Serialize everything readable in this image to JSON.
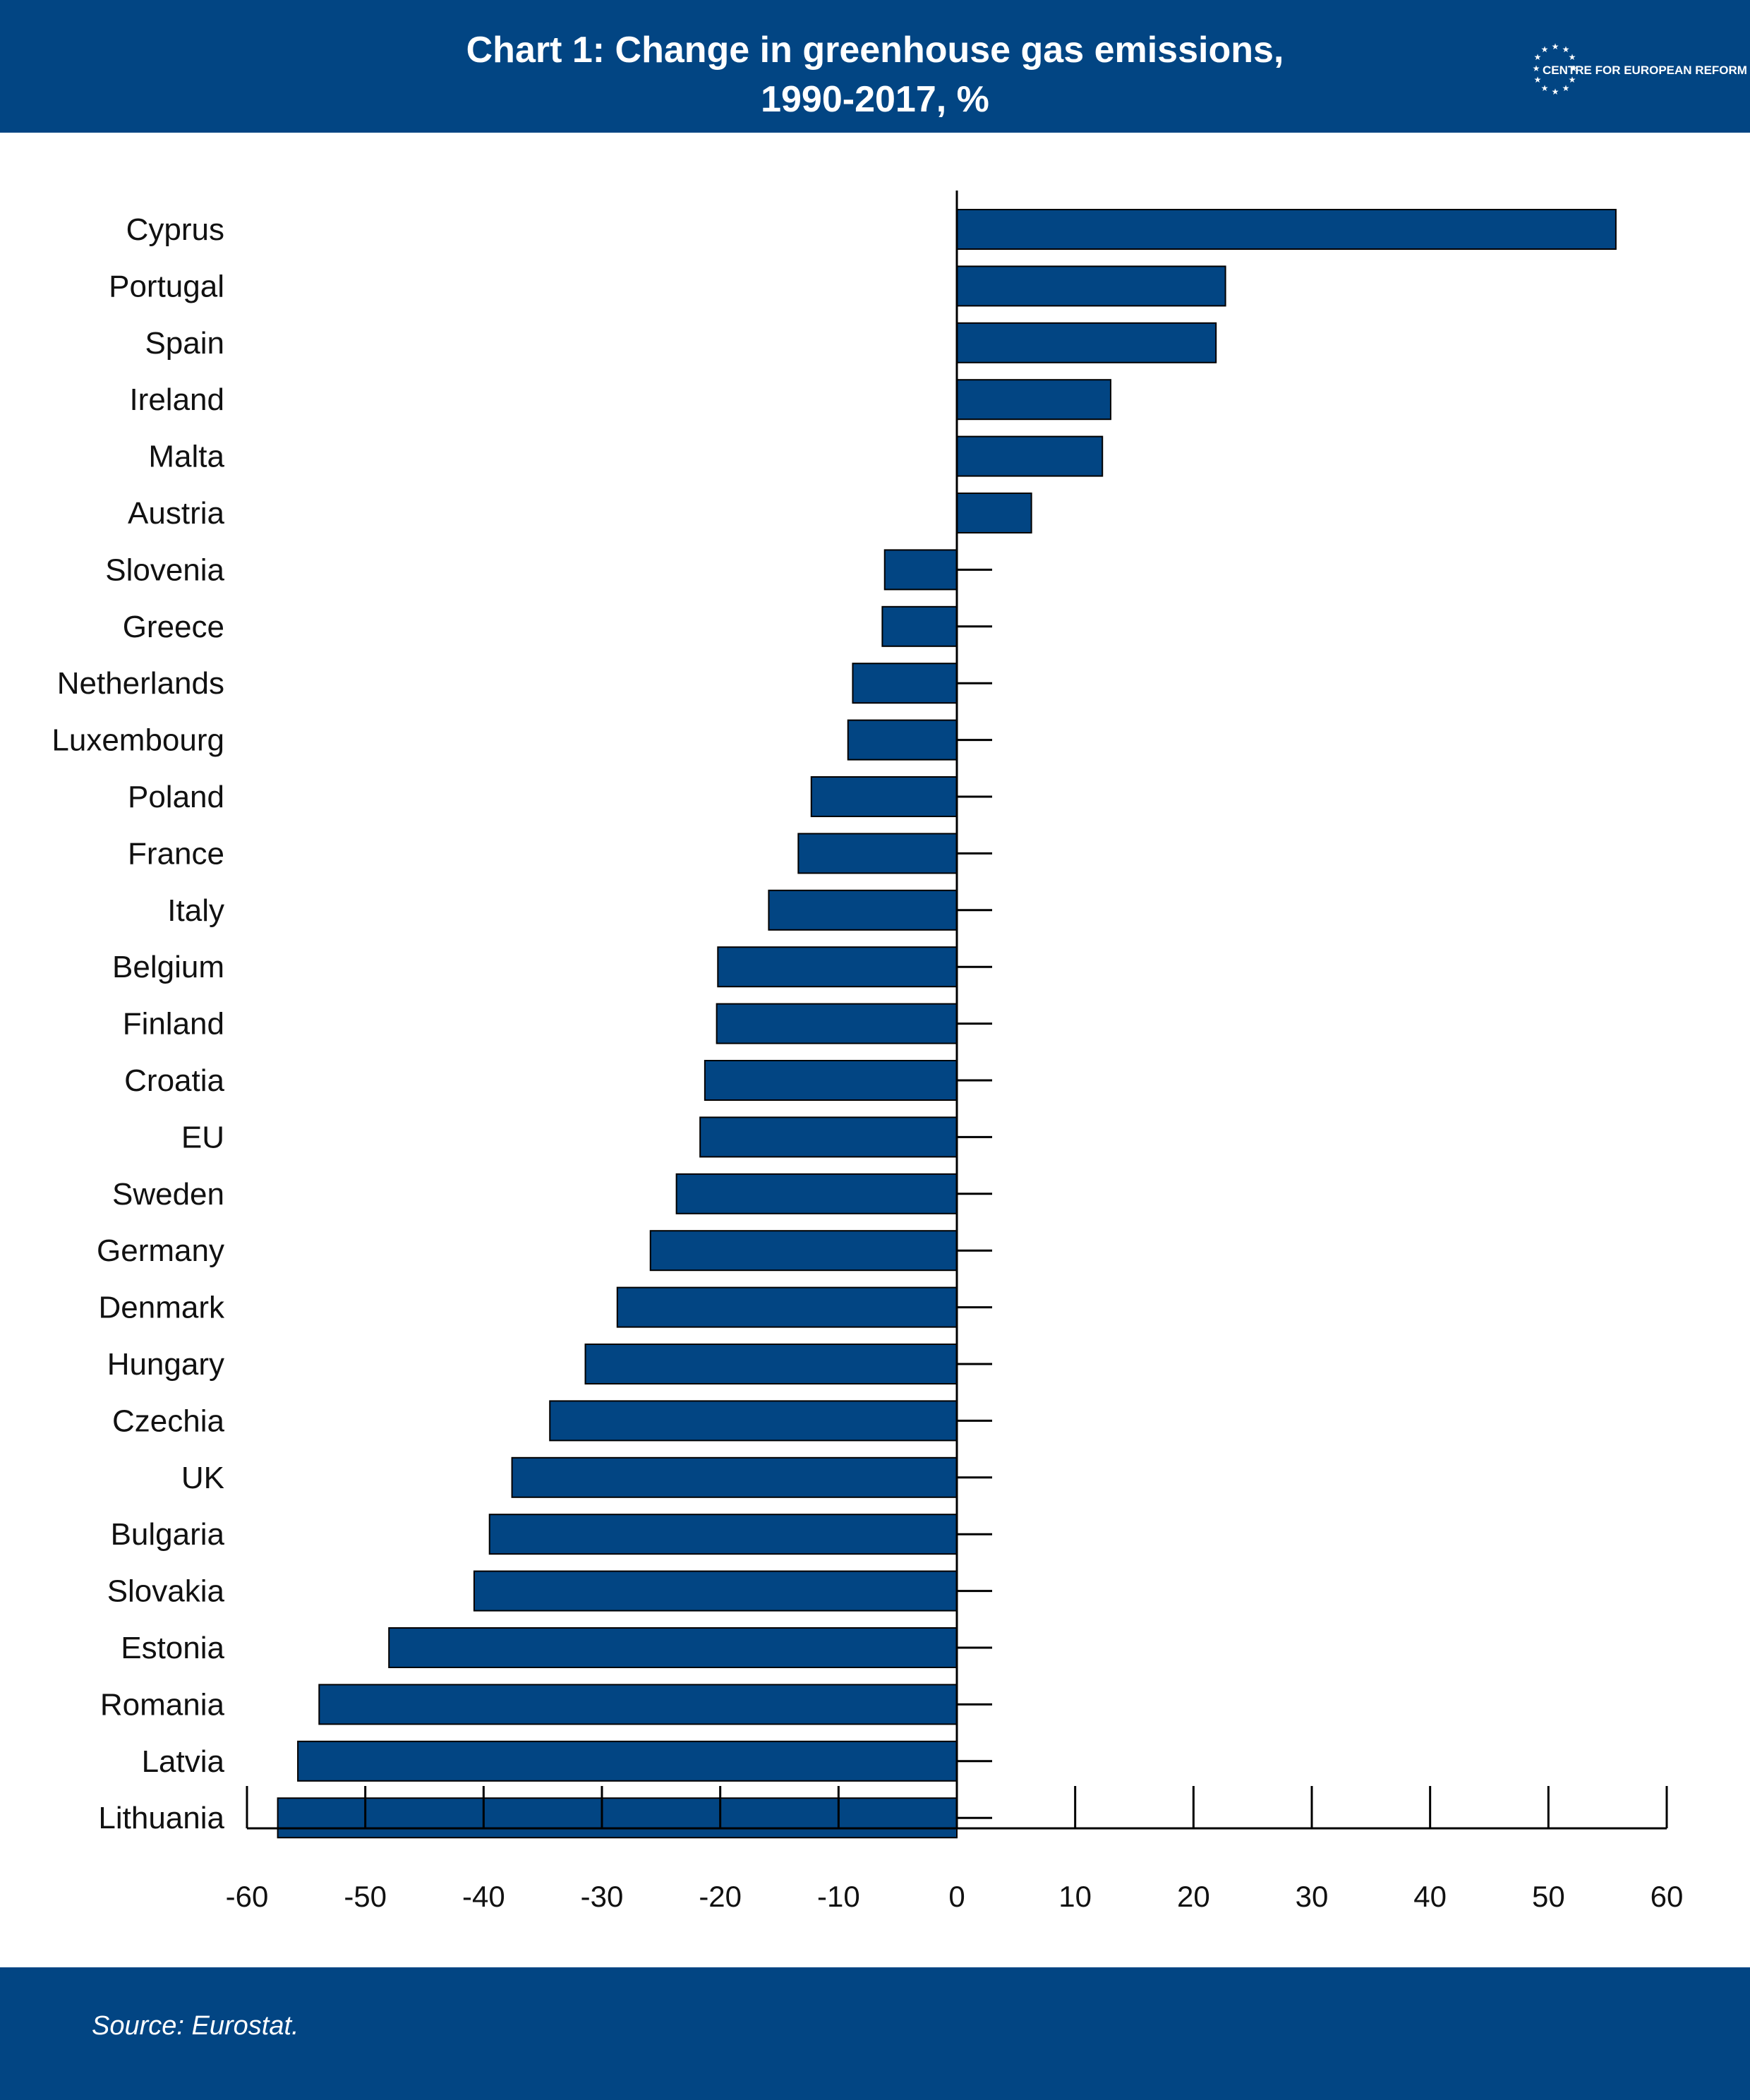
{
  "header": {
    "title_line1": "Chart 1: Change in greenhouse gas emissions,",
    "title_line2": "1990-2017, %",
    "logo_text": "CENTRE FOR EUROPEAN REFORM"
  },
  "footer": {
    "source": "Source: Eurostat."
  },
  "colors": {
    "brand": "#024583",
    "bar": "#024583",
    "axis": "#000000"
  },
  "chart_data": {
    "type": "bar",
    "orientation": "horizontal",
    "title": "Chart 1: Change in greenhouse gas emissions, 1990-2017, %",
    "categories": [
      "Cyprus",
      "Portugal",
      "Spain",
      "Ireland",
      "Malta",
      "Austria",
      "Slovenia",
      "Greece",
      "Netherlands",
      "Luxembourg",
      "Poland",
      "France",
      "Italy",
      "Belgium",
      "Finland",
      "Croatia",
      "EU",
      "Sweden",
      "Germany",
      "Denmark",
      "Hungary",
      "Czechia",
      "UK",
      "Bulgaria",
      "Slovakia",
      "Estonia",
      "Romania",
      "Latvia",
      "Lithuania"
    ],
    "values": [
      55.7,
      22.7,
      21.9,
      13,
      12.3,
      6.3,
      -6.1,
      -6.3,
      -8.8,
      -9.2,
      -12.3,
      -13.4,
      -15.9,
      -20.2,
      -20.3,
      -21.3,
      -21.7,
      -23.7,
      -25.9,
      -28.7,
      -31.4,
      -34.4,
      -37.6,
      -39.5,
      -40.8,
      -48,
      -53.9,
      -55.7,
      -57.4
    ],
    "xlim": [
      -60,
      60
    ],
    "xticks": [
      -60,
      -50,
      -40,
      -30,
      -20,
      -10,
      0,
      10,
      20,
      30,
      40,
      50,
      60
    ],
    "xlabel": "",
    "ylabel": "",
    "grid": false,
    "legend": "none"
  }
}
